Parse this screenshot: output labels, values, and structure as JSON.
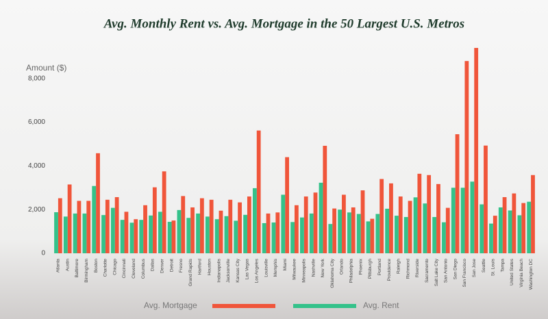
{
  "chart_data": {
    "type": "bar",
    "title": "Avg. Monthly Rent vs. Avg. Mortgage in the 50 Largest U.S. Metros",
    "y_label": "Amount ($)",
    "categories": [
      "Atlanta",
      "Austin",
      "Baltimore",
      "Birmingham",
      "Boston",
      "Charlotte",
      "Chicago",
      "Cincinnati",
      "Cleveland",
      "Columbus",
      "Dallas",
      "Denver",
      "Detroit",
      "Fresno",
      "Grand Rapids",
      "Hartford",
      "Houston",
      "Indianapolis",
      "Jacksonville",
      "Kansas City",
      "Las Vegas",
      "Los Angeles",
      "Louisville",
      "Memphis",
      "Miami",
      "Milwaukee",
      "Minneapolis",
      "Nashville",
      "New York",
      "Oklahoma City",
      "Orlando",
      "Philadelphia",
      "Phoenix",
      "Pittsburgh",
      "Portland",
      "Providence",
      "Raleigh",
      "Richmond",
      "Riverside",
      "Sacramento",
      "Salt Lake City",
      "San Antonio",
      "San Diego",
      "San Francisco",
      "San Jose",
      "Seattle",
      "St. Louis",
      "Tampa",
      "United States",
      "Virginia Beach",
      "Washington DC"
    ],
    "series": [
      {
        "name": "Avg. Mortgage",
        "color": "#f0553a",
        "values": [
          2520,
          3150,
          2400,
          2400,
          4580,
          2450,
          2570,
          1900,
          1560,
          2200,
          3020,
          3750,
          1500,
          2620,
          2100,
          2520,
          2450,
          1950,
          2450,
          2330,
          2600,
          5620,
          1820,
          1870,
          4400,
          2200,
          2600,
          2780,
          4920,
          2050,
          2680,
          2100,
          2880,
          1580,
          3400,
          3200,
          2600,
          2400,
          3640,
          3580,
          3170,
          2080,
          5450,
          8800,
          9400,
          4930,
          1720,
          2570,
          2740,
          2300,
          3580
        ]
      },
      {
        "name": "Avg. Rent",
        "color": "#34c28a",
        "values": [
          1880,
          1680,
          1820,
          1820,
          3080,
          1750,
          2080,
          1530,
          1400,
          1530,
          1730,
          1900,
          1440,
          1980,
          1620,
          1820,
          1680,
          1560,
          1700,
          1490,
          1760,
          2980,
          1380,
          1410,
          2680,
          1430,
          1640,
          1820,
          3230,
          1340,
          2000,
          1870,
          1800,
          1460,
          1800,
          2040,
          1720,
          1660,
          2560,
          2280,
          1660,
          1420,
          3000,
          3000,
          3280,
          2240,
          1360,
          2100,
          1960,
          1740,
          2360
        ]
      }
    ],
    "ylim": [
      0,
      9400
    ],
    "yticks": [
      0,
      {
        "value": 2000,
        "label": "2,000"
      },
      {
        "value": 4000,
        "label": "4,000"
      },
      {
        "value": 6000,
        "label": "6,000"
      },
      {
        "value": 8000,
        "label": "8,000"
      }
    ],
    "grid": false,
    "legend": "bottom"
  }
}
